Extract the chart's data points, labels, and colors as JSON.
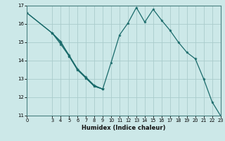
{
  "xlabel": "Humidex (Indice chaleur)",
  "background_color": "#cce8e8",
  "grid_color": "#aacccc",
  "line_color": "#1a6b6b",
  "xlim": [
    0,
    23
  ],
  "ylim": [
    11,
    17
  ],
  "xticks": [
    0,
    3,
    4,
    5,
    6,
    7,
    8,
    9,
    10,
    11,
    12,
    13,
    14,
    15,
    16,
    17,
    18,
    19,
    20,
    21,
    22,
    23
  ],
  "yticks": [
    11,
    12,
    13,
    14,
    15,
    16,
    17
  ],
  "line1_x": [
    0,
    3,
    4,
    5,
    6,
    7,
    8,
    9,
    10,
    11,
    12,
    13,
    14,
    15,
    16,
    17,
    18,
    19,
    20,
    21,
    22,
    23
  ],
  "line1_y": [
    16.6,
    15.5,
    15.0,
    14.3,
    13.55,
    13.1,
    12.65,
    12.45,
    13.9,
    15.4,
    16.05,
    16.9,
    16.1,
    16.8,
    16.2,
    15.65,
    15.0,
    14.45,
    14.1,
    13.0,
    11.75,
    11.0
  ],
  "line2_x": [
    0,
    3,
    4,
    5,
    6,
    7,
    8,
    9
  ],
  "line2_y": [
    16.6,
    15.5,
    15.05,
    14.25,
    13.5,
    13.05,
    12.6,
    12.45
  ],
  "line3_x": [
    3,
    4,
    5,
    6,
    7,
    8,
    9
  ],
  "line3_y": [
    15.5,
    14.9,
    14.25,
    13.5,
    13.05,
    12.6,
    12.45
  ]
}
